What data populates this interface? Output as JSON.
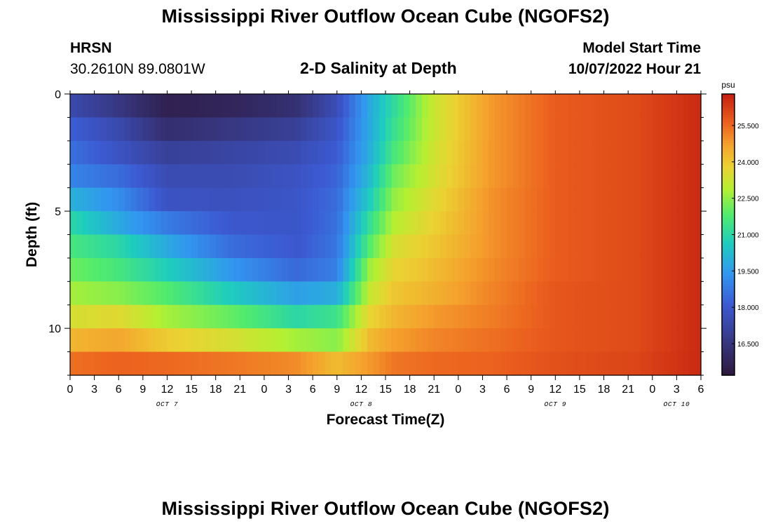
{
  "header": {
    "title": "Mississippi River Outflow Ocean Cube (NGOFS2)",
    "station_id": "HRSN",
    "station_coords": "30.2610N  89.0801W",
    "plot_title": "2-D Salinity at Depth",
    "model_label": "Model Start Time",
    "model_time": "10/07/2022 Hour 21"
  },
  "footer": {
    "title": "Mississippi River Outflow Ocean Cube (NGOFS2)"
  },
  "chart_data": {
    "type": "heatmap",
    "title": "2-D Salinity at Depth",
    "xlabel": "Forecast Time(Z)",
    "ylabel": "Depth (ft)",
    "x_tick_labels": [
      "0",
      "3",
      "6",
      "9",
      "12",
      "15",
      "18",
      "21",
      "0",
      "3",
      "6",
      "9",
      "12",
      "15",
      "18",
      "21",
      "0",
      "3",
      "6",
      "9",
      "12",
      "15",
      "18",
      "21",
      "0",
      "3",
      "6"
    ],
    "date_labels": [
      {
        "label": "OCT 7",
        "hours": 12
      },
      {
        "label": "OCT 8",
        "hours": 36
      },
      {
        "label": "OCT 9",
        "hours": 60
      },
      {
        "label": "OCT 10",
        "hours": 75
      }
    ],
    "xlim_hours": [
      0,
      78
    ],
    "ylim_ft": [
      0,
      12
    ],
    "y_ticks": [
      0,
      5,
      10
    ],
    "y_tick_labels": [
      "0",
      "5",
      "10"
    ],
    "colorbar": {
      "unit": "psu",
      "range": [
        15.2,
        26.8
      ],
      "ticks": [
        "16.500",
        "18.000",
        "19.500",
        "21.000",
        "22.500",
        "24.000",
        "25.500"
      ],
      "tick_values": [
        16.5,
        18.0,
        19.5,
        21.0,
        22.5,
        24.0,
        25.5
      ]
    },
    "depth_layers_ft": [
      0.5,
      1.5,
      2.5,
      3.5,
      4.5,
      5.5,
      6.5,
      7.5,
      8.5,
      9.5,
      10.5,
      11.5
    ],
    "profiles": {
      "hours": [
        0,
        6,
        12,
        20,
        28,
        33,
        37,
        40,
        45,
        52,
        60,
        70,
        78
      ],
      "layer_1": [
        17.4,
        16.6,
        15.6,
        15.8,
        16.3,
        17.6,
        19.8,
        21.1,
        23.2,
        24.8,
        25.7,
        26.0,
        26.6
      ],
      "layer_2": [
        18.2,
        17.4,
        16.2,
        16.6,
        17.0,
        17.9,
        19.8,
        21.3,
        23.2,
        24.8,
        25.7,
        26.0,
        26.6
      ],
      "layer_3": [
        18.6,
        17.8,
        17.0,
        17.2,
        17.5,
        18.1,
        19.9,
        21.6,
        23.3,
        24.8,
        25.7,
        26.0,
        26.6
      ],
      "layer_4": [
        19.0,
        18.5,
        17.5,
        17.5,
        17.8,
        18.3,
        20.2,
        22.1,
        23.4,
        24.8,
        25.7,
        26.0,
        26.6
      ],
      "layer_5": [
        20.0,
        19.2,
        17.8,
        17.7,
        17.9,
        18.5,
        20.6,
        22.5,
        23.6,
        24.9,
        25.7,
        26.0,
        26.6
      ],
      "layer_6": [
        21.0,
        19.8,
        18.8,
        18.0,
        17.9,
        18.6,
        21.2,
        22.9,
        23.8,
        24.9,
        25.7,
        26.0,
        26.6
      ],
      "layer_7": [
        21.6,
        21.0,
        19.8,
        18.5,
        18.0,
        18.7,
        21.8,
        23.4,
        24.0,
        24.9,
        25.7,
        26.0,
        26.6
      ],
      "layer_8": [
        22.1,
        21.6,
        20.7,
        19.4,
        18.4,
        18.9,
        22.6,
        23.7,
        24.2,
        25.0,
        25.7,
        26.0,
        26.6
      ],
      "layer_9": [
        22.7,
        22.4,
        21.8,
        20.6,
        19.6,
        19.9,
        23.1,
        24.0,
        24.4,
        25.1,
        25.8,
        26.0,
        26.6
      ],
      "layer_10": [
        23.4,
        23.6,
        22.7,
        22.0,
        21.0,
        21.4,
        23.7,
        24.3,
        24.8,
        25.2,
        25.8,
        26.0,
        26.6
      ],
      "layer_11": [
        24.3,
        24.6,
        23.9,
        23.4,
        22.7,
        22.4,
        24.2,
        24.7,
        25.1,
        25.4,
        25.8,
        26.0,
        26.6
      ],
      "layer_12": [
        25.4,
        25.6,
        25.5,
        25.3,
        25.0,
        24.2,
        24.8,
        25.3,
        25.5,
        25.6,
        25.9,
        26.1,
        26.6
      ]
    }
  }
}
